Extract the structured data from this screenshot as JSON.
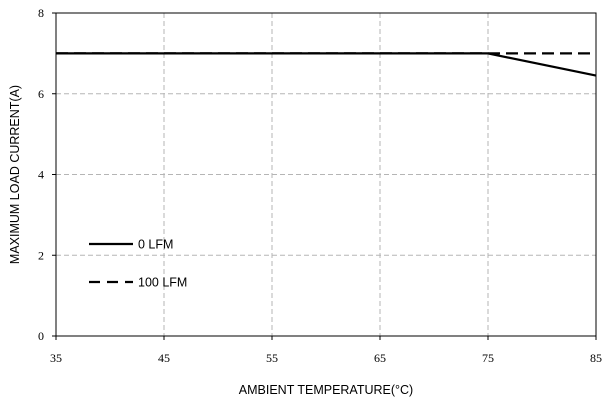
{
  "chart_data": {
    "type": "line",
    "title": "",
    "xlabel": "AMBIENT TEMPERATURE(°C)",
    "ylabel": "MAXIMUM LOAD CURRENT(A)",
    "xlim": [
      35,
      85
    ],
    "ylim": [
      0,
      8
    ],
    "x_ticks": [
      "35",
      "45",
      "55",
      "65",
      "75",
      "85"
    ],
    "y_ticks": [
      "0",
      "2",
      "4",
      "6",
      "8"
    ],
    "grid": true,
    "legend_position": "left",
    "series": [
      {
        "name": "0 LFM",
        "style": "solid",
        "color": "#000000",
        "x": [
          35,
          75,
          85
        ],
        "y": [
          7,
          7,
          6.45
        ]
      },
      {
        "name": "100 LFM",
        "style": "dashed",
        "color": "#000000",
        "x": [
          35,
          75,
          85
        ],
        "y": [
          7,
          7,
          7
        ]
      }
    ]
  }
}
